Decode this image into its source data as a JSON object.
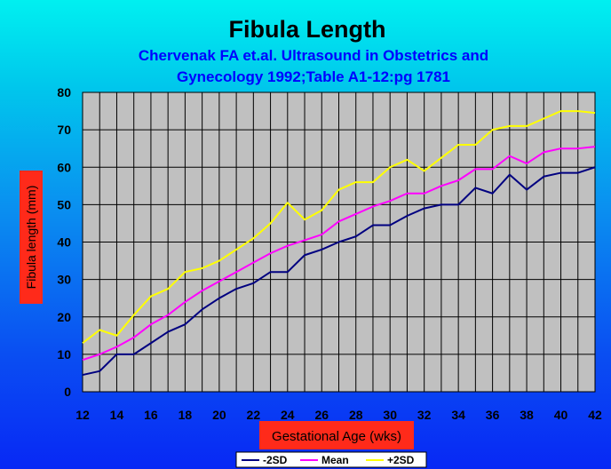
{
  "chart_data": {
    "type": "line",
    "title": "Fibula Length",
    "subtitle_lines": [
      "Chervenak FA et.al. Ultrasound in Obstetrics and",
      "Gynecology 1992;Table A1-12:pg 1781"
    ],
    "xlabel": "Gestational Age (wks)",
    "ylabel": "Fibula length (mm)",
    "xlim": [
      12,
      42
    ],
    "ylim": [
      0,
      80
    ],
    "x_ticks": [
      12,
      14,
      16,
      18,
      20,
      22,
      24,
      26,
      28,
      30,
      32,
      34,
      36,
      38,
      40,
      42
    ],
    "y_ticks": [
      0,
      10,
      20,
      30,
      40,
      50,
      60,
      70,
      80
    ],
    "grid": true,
    "legend_position": "bottom-center",
    "x": [
      12,
      13,
      14,
      15,
      16,
      17,
      18,
      19,
      20,
      21,
      22,
      23,
      24,
      25,
      26,
      27,
      28,
      29,
      30,
      31,
      32,
      33,
      34,
      35,
      36,
      37,
      38,
      39,
      40,
      41,
      42
    ],
    "series": [
      {
        "name": "-2SD",
        "color": "#000080",
        "values": [
          4.5,
          5.5,
          10,
          10,
          13,
          16,
          18,
          22,
          25,
          27.5,
          29,
          32,
          32,
          36.5,
          38,
          40,
          41.5,
          44.5,
          44.5,
          47,
          49,
          50,
          50,
          54.5,
          53,
          58,
          54,
          57.5,
          58.5,
          58.5,
          60
        ]
      },
      {
        "name": "Mean",
        "color": "#ff00ff",
        "values": [
          8.5,
          10,
          12,
          14.5,
          18,
          20.5,
          24,
          27,
          29.5,
          32,
          34.5,
          37,
          39,
          40.5,
          42,
          45.5,
          47.5,
          49.5,
          51,
          53,
          53,
          55,
          56.5,
          59.5,
          59.5,
          63,
          61,
          64,
          65,
          65,
          65.5
        ]
      },
      {
        "name": "+2SD",
        "color": "#ffff00",
        "values": [
          13,
          16.5,
          15,
          20.5,
          25.5,
          27.5,
          32,
          33,
          35,
          38,
          41,
          45,
          50.5,
          46,
          48.5,
          54,
          56,
          56,
          60,
          62,
          59,
          62.5,
          66,
          66,
          70,
          71,
          71,
          73,
          75,
          75,
          74.5
        ]
      }
    ]
  }
}
